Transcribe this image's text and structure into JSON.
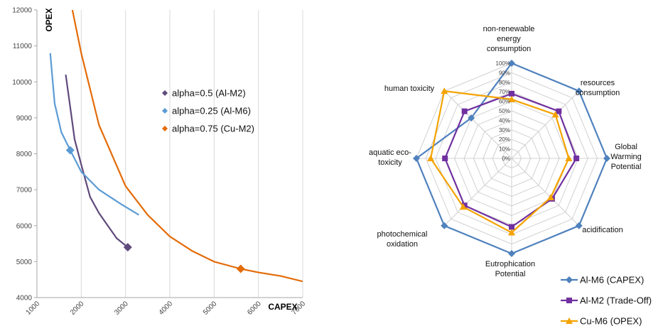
{
  "chart_data": [
    {
      "type": "line",
      "xlabel": "CAPEX",
      "ylabel": "OPEX",
      "xlim": [
        1000,
        7000
      ],
      "ylim": [
        4000,
        12000
      ],
      "x_ticks": [
        "1000",
        "2000",
        "3000",
        "4000",
        "5000",
        "6000",
        "7000"
      ],
      "y_ticks": [
        "4000",
        "5000",
        "6000",
        "7000",
        "8000",
        "9000",
        "10000",
        "11000",
        "12000"
      ],
      "grid": "vertical",
      "legend_position": "inside-top-right",
      "series": [
        {
          "name": "alpha=0.5 (Al-M2)",
          "color": "#604a7b",
          "marker": "diamond",
          "x": [
            1650,
            1750,
            1850,
            2000,
            2200,
            2400,
            2600,
            2800,
            3050
          ],
          "y": [
            10200,
            9300,
            8400,
            7700,
            6800,
            6350,
            6000,
            5650,
            5400
          ],
          "highlight": [
            3050,
            5400
          ]
        },
        {
          "name": "alpha=0.25 (Al-M6)",
          "color": "#5b9bd5",
          "marker": "diamond",
          "x": [
            1300,
            1400,
            1550,
            1750,
            2000,
            2400,
            2900,
            3300
          ],
          "y": [
            10800,
            9400,
            8600,
            8100,
            7500,
            7000,
            6600,
            6300
          ],
          "highlight": [
            1750,
            8100
          ]
        },
        {
          "name": "alpha=0.75 (Cu-M2)",
          "color": "#e36c09",
          "marker": "diamond",
          "x": [
            1800,
            2000,
            2400,
            3000,
            3500,
            4000,
            4500,
            5000,
            5600,
            6000,
            6500,
            7000
          ],
          "y": [
            12000,
            10800,
            8800,
            7100,
            6300,
            5700,
            5300,
            5000,
            4800,
            4700,
            4600,
            4450
          ],
          "highlight": [
            5600,
            4800
          ]
        }
      ]
    },
    {
      "type": "radar",
      "categories": [
        "non-renewable energy consumption",
        "resources consumption",
        "Global Warming Potential",
        "acidification",
        "Eutrophication Potential",
        "photochemical oxidation",
        "aquatic eco-toxicity",
        "human toxicity"
      ],
      "category_lines": [
        [
          "non-renewable",
          "energy",
          "consumption"
        ],
        [
          "resources",
          "consumption"
        ],
        [
          "Global",
          "Warming",
          "Potential"
        ],
        [
          "acidification"
        ],
        [
          "Eutrophication",
          "Potential"
        ],
        [
          "photochemical",
          "oxidation"
        ],
        [
          "aquatic eco-",
          "toxicity"
        ],
        [
          "human toxicity"
        ]
      ],
      "rings": [
        "0%",
        "10%",
        "20%",
        "30%",
        "40%",
        "50%",
        "60%",
        "70%",
        "80%",
        "90%",
        "100%"
      ],
      "legend_position": "bottom-right",
      "series": [
        {
          "name": "Al-M6 (CAPEX)",
          "color": "#4f81bd",
          "marker": "diamond",
          "values": [
            100,
            100,
            100,
            100,
            100,
            100,
            100,
            60
          ]
        },
        {
          "name": "Al-M2 (Trade-Off)",
          "color": "#7030a0",
          "marker": "square",
          "values": [
            68,
            70,
            68,
            60,
            72,
            70,
            70,
            70
          ]
        },
        {
          "name": "Cu-M6 (OPEX)",
          "color": "#f4a300",
          "marker": "triangle",
          "values": [
            62,
            65,
            60,
            58,
            78,
            72,
            85,
            100
          ]
        }
      ]
    }
  ]
}
